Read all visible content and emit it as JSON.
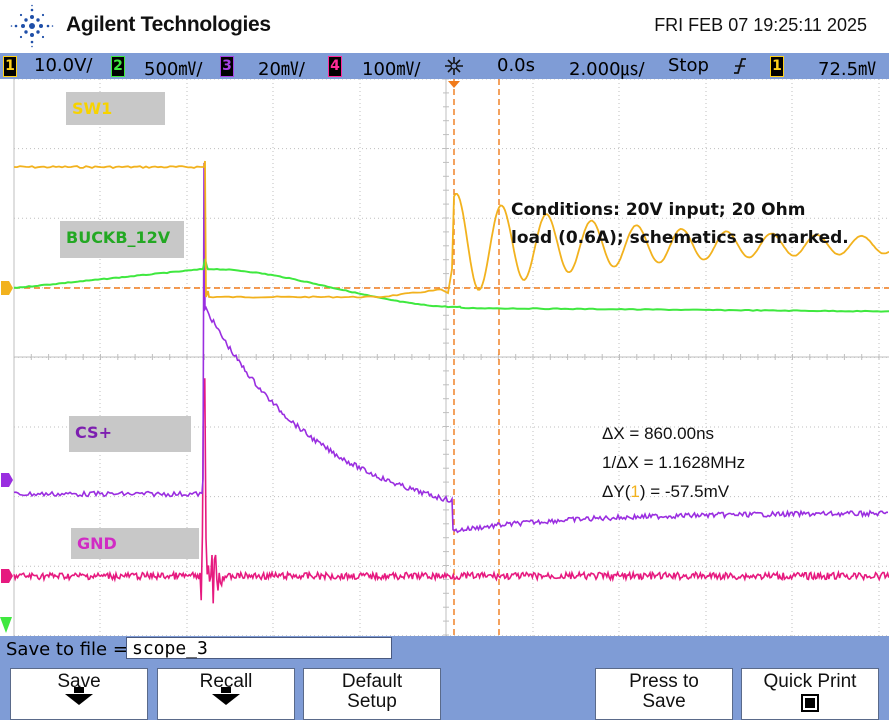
{
  "header": {
    "brand": "Agilent Technologies",
    "datetime": "FRI FEB 07 19:25:11 2025",
    "logo_icon": "agilent-spark-icon"
  },
  "status": {
    "ch1_num": "1",
    "ch1_scale": "10.0V/",
    "ch2_num": "2",
    "ch2_scale": "500㎷/",
    "ch3_num": "3",
    "ch3_scale": "20㎷/",
    "ch4_num": "4",
    "ch4_scale": "100㎷/",
    "trigger_pos_icon": "trigger-position-icon",
    "delay": "0.0s",
    "timebase": "2.000㎲/",
    "run_state": "Stop",
    "trigger_slope_icon": "rising-edge-icon",
    "trigger_src": "1",
    "trigger_level": "72.5㎷"
  },
  "traces": {
    "sw1_label": "SW1",
    "buckb_label": "BUCKB_12V",
    "cs_label": "CS+",
    "gnd_label": "GND",
    "marker_1": "1",
    "marker_3": "3",
    "marker_4": "4",
    "marker_2": "2",
    "colors": {
      "ch1": "#f2b21e",
      "ch2": "#3fe83f",
      "ch3": "#9a2ee0",
      "ch4": "#e6197f"
    }
  },
  "annotation": {
    "line1": "Conditions: 20V input; 20 Ohm",
    "line2": "load (0.6A); schematics as marked."
  },
  "measurements": {
    "dx": "ΔX = 860.00ns",
    "inv_dx": "1/ΔX = 1.1628MHz",
    "dy_prefix": "ΔY(",
    "dy_ch": "1",
    "dy_suffix": ") = -57.5mV"
  },
  "savebar": {
    "label": "Save to file =",
    "filename": "scope_3"
  },
  "softkeys": {
    "save": "Save",
    "recall": "Recall",
    "default_1": "Default",
    "default_2": "Setup",
    "press_1": "Press to",
    "press_2": "Save",
    "quick_print": "Quick Print"
  }
}
